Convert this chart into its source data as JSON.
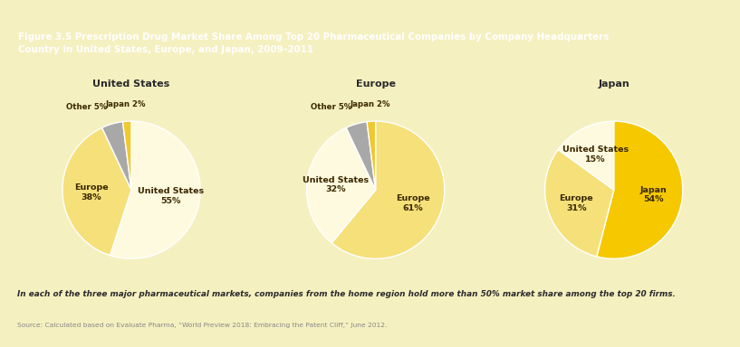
{
  "title_line1": "Figure 3.5 Prescription Drug Market Share Among Top 20 Pharmaceutical Companies by Company Headquarters",
  "title_line2": "Country in United States, Europe, and Japan, 2009–2011",
  "title_bg_color": "#8C8C8C",
  "title_text_color": "#FFFFFF",
  "outer_bg_color": "#F5F0C0",
  "inner_bg_color": "#E4E4E4",
  "footer_text": "In each of the three major pharmaceutical markets, companies from the home region hold more than 50% market share among the top 20 firms.",
  "source_text": "Source: Calculated based on Evaluate Pharma, “World Preview 2018: Embracing the Patent Cliff,” June 2012.",
  "accent_color": "#E8B800",
  "text_color": "#2A2A2A",
  "label_color": "#3A2800",
  "source_color": "#888888",
  "charts": [
    {
      "title": "United States",
      "segments": [
        {
          "label": "United States",
          "value": 55,
          "color": "#FEFAE0"
        },
        {
          "label": "Europe",
          "value": 38,
          "color": "#F5E07A"
        },
        {
          "label": "Other",
          "value": 5,
          "color": "#A8A8A8"
        },
        {
          "label": "Japan",
          "value": 2,
          "color": "#F0C830"
        }
      ],
      "startangle": 90,
      "inside_threshold": 15
    },
    {
      "title": "Europe",
      "segments": [
        {
          "label": "Europe",
          "value": 61,
          "color": "#F5E07A"
        },
        {
          "label": "United States",
          "value": 32,
          "color": "#FEFAE0"
        },
        {
          "label": "Other",
          "value": 5,
          "color": "#A8A8A8"
        },
        {
          "label": "Japan",
          "value": 2,
          "color": "#F0C830"
        }
      ],
      "startangle": 90,
      "inside_threshold": 15
    },
    {
      "title": "Japan",
      "segments": [
        {
          "label": "Japan",
          "value": 54,
          "color": "#F5C800"
        },
        {
          "label": "Europe",
          "value": 31,
          "color": "#F5E07A"
        },
        {
          "label": "United States",
          "value": 15,
          "color": "#FEFAE0"
        }
      ],
      "startangle": 90,
      "inside_threshold": 15
    }
  ]
}
